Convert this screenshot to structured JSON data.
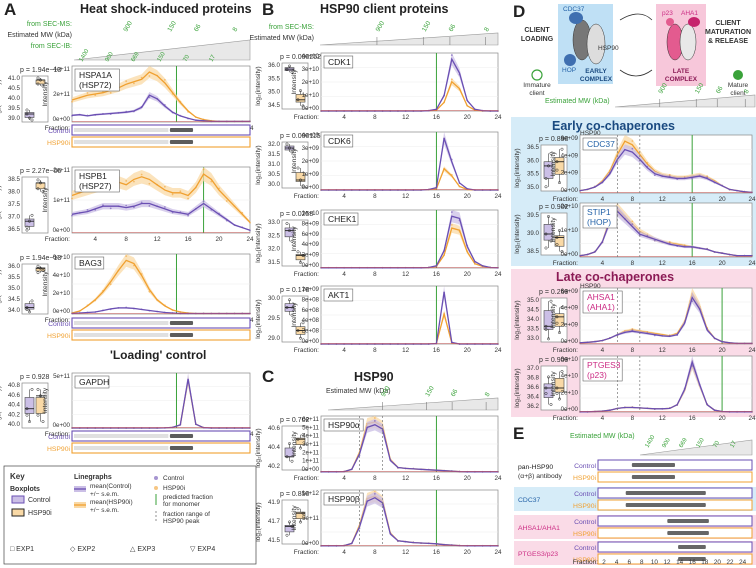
{
  "colors": {
    "control": "#6a4fb3",
    "control_fill": "#cbbfe6",
    "hsp90i": "#f0a030",
    "hsp90i_fill": "#f9d9a6",
    "red_line": "#d9534f",
    "green": "#3aa23a",
    "early_bg": "#d6ecf8",
    "late_bg": "#fadbe7",
    "ahsa1": "#cc2c84",
    "cdc37": "#2563a8"
  },
  "panel_letters": {
    "A": "A",
    "B": "B",
    "C": "C",
    "D": "D",
    "E": "E"
  },
  "panel_titles": {
    "A": "Heat shock-induced proteins",
    "B": "HSP90 client proteins",
    "C": "HSP90",
    "loading": "'Loading' control",
    "early": "Early co-chaperones",
    "late": "Late co-chaperones"
  },
  "mw_header": {
    "from_sec_ms": "from SEC-MS:",
    "estimated_mw": "Estimated MW (kDa)",
    "from_sec_ib": "from SEC-IB:",
    "mw_ticks": [
      "900",
      "150",
      "66",
      "8"
    ],
    "mw_ticks_e": [
      "1400",
      "900",
      "669",
      "150",
      "70",
      "17"
    ],
    "ib_ticks": [
      "1400",
      "900",
      "669",
      "150",
      "70",
      "17"
    ]
  },
  "axis_labels": {
    "intensity": "Intensity",
    "log2": "log₂(intensity)",
    "fraction": "Fraction:",
    "fraction_ticks": [
      "4",
      "8",
      "12",
      "16",
      "20",
      "24"
    ],
    "fraction_ticks_e": [
      "2",
      "4",
      "6",
      "8",
      "10",
      "12",
      "14",
      "16",
      "18",
      "20",
      "22",
      "24"
    ]
  },
  "blot_labels": {
    "control": "Control",
    "hsp90i": "HSP90i"
  },
  "charts": [
    {
      "id": "hspa1a",
      "name": "HSPA1A",
      "name2": "(HSP72)",
      "p": "p = 1.94e−13",
      "y_ticks": [
        "4e+11",
        "2e+11",
        "0e+00"
      ],
      "y_max": 460000000000.0,
      "box_ticks": [
        "41.0",
        "40.5",
        "40.0",
        "39.5",
        "39.0"
      ],
      "control": [
        0.55,
        0.6,
        0.5,
        0.6,
        0.65,
        0.7,
        0.75,
        0.8,
        0.9,
        1.2,
        2.2,
        1.9,
        1.3,
        0.8,
        0.5,
        0.3,
        0.15,
        0.1,
        0.05,
        0.05,
        0.05,
        0.05,
        0.05,
        0.05
      ],
      "hsp90i": [
        1.8,
        2.0,
        2.2,
        2.3,
        2.4,
        2.6,
        2.8,
        3.1,
        3.3,
        3.5,
        4.1,
        3.8,
        3.2,
        2.4,
        1.6,
        0.9,
        0.4,
        0.2,
        0.1,
        0.05,
        0.05,
        0.05,
        0.05,
        0.05
      ],
      "green": 14.5,
      "box_c": [
        39.2,
        39.0,
        38.9,
        39.4
      ],
      "box_h": [
        40.7,
        40.9,
        40.6,
        41.0
      ],
      "blot": true
    },
    {
      "id": "hspb1",
      "name": "HSPB1",
      "name2": "(HSP27)",
      "p": "p = 2.27e−06",
      "y_ticks": [
        "2e+11",
        "1e+11",
        "0e+00"
      ],
      "y_max": 260000000000.0,
      "box_ticks": [
        "38.5",
        "38.0",
        "37.5",
        "37.0",
        "36.5"
      ],
      "control": [
        0.7,
        0.75,
        0.8,
        0.9,
        1.0,
        1.0,
        1.0,
        0.95,
        1.0,
        1.1,
        1.1,
        1.0,
        0.9,
        0.8,
        0.75,
        0.7,
        0.9,
        1.1,
        0.9,
        0.7,
        0.5,
        0.3,
        0.2,
        0.1
      ],
      "hsp90i": [
        1.4,
        1.5,
        1.6,
        1.7,
        1.8,
        1.9,
        1.9,
        1.8,
        2.0,
        2.1,
        2.0,
        1.8,
        1.6,
        1.5,
        1.5,
        1.4,
        1.7,
        2.2,
        2.0,
        1.6,
        1.3,
        1.0,
        0.7,
        0.4
      ],
      "green": 18.0,
      "box_c": [
        36.7,
        36.9,
        37.1,
        36.6
      ],
      "box_h": [
        38.0,
        38.2,
        37.9,
        38.3
      ],
      "blot": false
    },
    {
      "id": "bag3",
      "name": "BAG3",
      "name2": "",
      "p": "p = 1.94e−13",
      "y_ticks": [
        "6e+10",
        "4e+10",
        "2e+10",
        "0e+00"
      ],
      "y_max": 70000000000.0,
      "box_ticks": [
        "36.0",
        "35.5",
        "35.0",
        "34.5",
        "34.0"
      ],
      "control": [
        0.05,
        0.1,
        0.15,
        0.2,
        0.35,
        0.5,
        0.6,
        0.6,
        0.55,
        0.45,
        0.35,
        0.25,
        0.15,
        0.1,
        0.05,
        0.05,
        0.05,
        0.05,
        0.05,
        0.05,
        0.05,
        0.05,
        0.05,
        0.05
      ],
      "hsp90i": [
        0.1,
        0.3,
        0.8,
        1.4,
        2.2,
        3.2,
        4.3,
        5.3,
        5.0,
        3.8,
        2.4,
        1.4,
        0.8,
        0.4,
        0.2,
        0.1,
        0.05,
        0.05,
        0.05,
        0.05,
        0.05,
        0.05,
        0.05,
        0.05
      ],
      "green": 14.5,
      "box_c": [
        34.2,
        34.0,
        34.5,
        34.1
      ],
      "box_h": [
        35.8,
        36.0,
        35.9,
        36.1
      ],
      "blot": true
    },
    {
      "id": "gapdh",
      "name": "GAPDH",
      "name2": "",
      "p": "p = 0.928",
      "y_ticks": [
        "5e+11",
        "0e+00"
      ],
      "y_max": 900000000000.0,
      "box_ticks": [
        "40.8",
        "40.6",
        "40.4",
        "40.2",
        "40.0"
      ],
      "control": [
        0,
        0,
        0,
        0,
        0,
        0,
        0,
        0,
        0,
        0,
        0,
        0,
        0.02,
        0.1,
        0.5,
        7.8,
        0.6,
        0.05,
        0,
        0,
        0,
        0,
        0,
        0
      ],
      "hsp90i": [
        0,
        0,
        0,
        0,
        0,
        0,
        0,
        0,
        0,
        0,
        0,
        0,
        0.02,
        0.1,
        0.5,
        7.6,
        0.6,
        0.05,
        0,
        0,
        0,
        0,
        0,
        0
      ],
      "green": 14.5,
      "box_c": [
        40.3,
        40.1,
        40.6,
        40.2
      ],
      "box_h": [
        40.2,
        40.5,
        40.1,
        40.6
      ],
      "blot": true
    },
    {
      "id": "cdk1",
      "name": "CDK1",
      "name2": "",
      "p": "p = 0.000252",
      "y_ticks": [
        "4e+10",
        "3e+10",
        "2e+10",
        "1e+10",
        "0e+00"
      ],
      "y_max": 42000000000.0,
      "box_ticks": [
        "36.0",
        "35.5",
        "35.0",
        "34.5"
      ],
      "control": [
        0,
        0,
        0,
        0,
        0,
        0,
        0,
        0,
        0,
        0,
        0,
        0,
        0,
        0,
        0.02,
        0.1,
        0.9,
        3.0,
        2.2,
        0.6,
        0.1,
        0.02,
        0,
        0
      ],
      "hsp90i": [
        0,
        0,
        0,
        0,
        0,
        0,
        0,
        0,
        0,
        0,
        0,
        0,
        0,
        0,
        0.02,
        0.05,
        0.5,
        1.7,
        1.3,
        0.3,
        0.05,
        0,
        0,
        0
      ],
      "green": 16.0,
      "box_c": [
        35.9,
        36.0,
        35.8
      ],
      "box_h": [
        34.9,
        35.2,
        34.7
      ],
      "blot": false
    },
    {
      "id": "cdk6",
      "name": "CDK6",
      "name2": "",
      "p": "p = 0.000115",
      "y_ticks": [
        "4e+09",
        "3e+09",
        "2e+09",
        "1e+09",
        "0e+00"
      ],
      "y_max": 4200000000.0,
      "box_ticks": [
        "32.0",
        "31.5",
        "31.0",
        "30.5",
        "30.0"
      ],
      "control": [
        0,
        0,
        0,
        0,
        0,
        0,
        0,
        0,
        0,
        0,
        0,
        0,
        0,
        0,
        0.02,
        0.1,
        2.2,
        1.2,
        0.3,
        0.05,
        0,
        0,
        0,
        0
      ],
      "hsp90i": [
        0,
        0,
        0,
        0,
        0,
        0,
        0,
        0,
        0,
        0,
        0,
        0,
        0,
        0,
        0.02,
        0.05,
        0.9,
        0.6,
        0.15,
        0.02,
        0,
        0,
        0,
        0
      ],
      "green": 16.0,
      "box_c": [
        32.1,
        31.9,
        31.7
      ],
      "box_h": [
        30.9,
        30.3,
        30.0
      ],
      "blot": false
    },
    {
      "id": "chek1",
      "name": "CHEK1",
      "name2": "",
      "p": "p = 0.0258",
      "y_ticks": [
        "1e+10",
        "8e+09",
        "6e+09",
        "4e+09",
        "2e+09",
        "0e+00"
      ],
      "y_max": 11000000000.0,
      "box_ticks": [
        "33.0",
        "32.5",
        "32.0",
        "31.5"
      ],
      "control": [
        0.02,
        0.02,
        0.02,
        0.02,
        0.02,
        0.02,
        0.02,
        0.02,
        0.02,
        0.02,
        0.02,
        0.02,
        0.02,
        0.02,
        0.05,
        0.2,
        1.6,
        4.8,
        4.6,
        2.0,
        0.6,
        0.2,
        0.05,
        0.02
      ],
      "hsp90i": [
        0.02,
        0.02,
        0.02,
        0.02,
        0.02,
        0.02,
        0.02,
        0.02,
        0.02,
        0.02,
        0.02,
        0.02,
        0.02,
        0.02,
        0.05,
        0.15,
        1.2,
        3.7,
        3.5,
        1.5,
        0.4,
        0.15,
        0.05,
        0.02
      ],
      "green": 16.0,
      "box_c": [
        32.7,
        32.5,
        32.2
      ],
      "box_h": [
        31.9,
        31.6,
        31.8
      ],
      "blot": false
    },
    {
      "id": "akt1",
      "name": "AKT1",
      "name2": "",
      "p": "p = 0.178",
      "y_ticks": [
        "1e+09",
        "8e+08",
        "6e+08",
        "4e+08",
        "2e+08",
        "0e+00"
      ],
      "y_max": 1100000000.0,
      "box_ticks": [
        "30.0",
        "29.5",
        "29.0"
      ],
      "control": [
        0,
        0,
        0,
        0,
        0,
        0,
        0,
        0,
        0,
        0,
        0,
        0,
        0,
        0,
        0,
        0.1,
        9.5,
        0.3,
        0,
        0,
        0,
        0,
        0,
        0
      ],
      "hsp90i": [
        0,
        0,
        0,
        0,
        0,
        0,
        0,
        0,
        0,
        0,
        0,
        0,
        0,
        0,
        0,
        0.1,
        5.5,
        0.2,
        0,
        0,
        0,
        0,
        0,
        0
      ],
      "green": 16.0,
      "box_c": [
        29.9,
        30.1,
        29.7
      ],
      "box_h": [
        29.3,
        29.1,
        29.5
      ],
      "blot": false
    },
    {
      "id": "hsp90a",
      "name": "HSP90α",
      "name2": "",
      "p": "p = 0.702",
      "y_ticks": [
        "6e+11",
        "5e+11",
        "4e+11",
        "3e+11",
        "2e+11",
        "1e+11",
        "0e+00"
      ],
      "y_max": 650000000000.0,
      "box_ticks": [
        "40.6",
        "40.4",
        "40.2"
      ],
      "control": [
        0.02,
        0.02,
        0.02,
        0.05,
        0.3,
        2.0,
        5.0,
        5.3,
        4.8,
        1.3,
        0.5,
        0.4,
        0.35,
        0.3,
        0.25,
        0.2,
        0.15,
        0.1,
        0.05,
        0.02,
        0.02,
        0.02,
        0.02,
        0.02
      ],
      "hsp90i": [
        0.02,
        0.02,
        0.02,
        0.05,
        0.3,
        2.2,
        5.4,
        5.6,
        5.1,
        1.4,
        0.5,
        0.4,
        0.35,
        0.3,
        0.25,
        0.2,
        0.15,
        0.1,
        0.05,
        0.02,
        0.02,
        0.02,
        0.02,
        0.02
      ],
      "green": 16.0,
      "box_c": [
        40.2,
        40.35,
        40.15
      ],
      "box_h": [
        40.4,
        40.3,
        40.45
      ],
      "blot": false
    },
    {
      "id": "hsp90b",
      "name": "HSP90β",
      "name2": "",
      "p": "p = 0.850",
      "y_ticks": [
        "1e+12",
        "5e+11",
        "0e+00"
      ],
      "y_max": 1300000000000.0,
      "box_ticks": [
        "41.9",
        "41.7",
        "41.5"
      ],
      "control": [
        0.02,
        0.02,
        0.02,
        0.05,
        0.3,
        2.2,
        5.2,
        5.6,
        5.0,
        1.4,
        0.6,
        0.5,
        0.4,
        0.35,
        0.3,
        0.25,
        0.15,
        0.1,
        0.05,
        0.02,
        0.02,
        0.02,
        0.02,
        0.02
      ],
      "hsp90i": [
        0.02,
        0.02,
        0.02,
        0.05,
        0.3,
        2.4,
        5.5,
        5.8,
        5.2,
        1.5,
        0.6,
        0.5,
        0.4,
        0.35,
        0.3,
        0.25,
        0.15,
        0.1,
        0.05,
        0.02,
        0.02,
        0.02,
        0.02,
        0.02
      ],
      "green": 16.0,
      "box_c": [
        41.5,
        41.65,
        41.6
      ],
      "box_h": [
        41.8,
        41.65,
        41.75
      ],
      "blot": false
    },
    {
      "id": "cdc37",
      "name": "CDC37",
      "name2": "",
      "p": "p = 0.898",
      "y_ticks": [
        "6e+09",
        "4e+09",
        "2e+09",
        "0e+00"
      ],
      "y_max": 7000000000.0,
      "box_ticks": [
        "36.5",
        "36.0",
        "35.5",
        "35.0"
      ],
      "control": [
        0.2,
        0.3,
        0.5,
        0.9,
        1.6,
        2.8,
        3.6,
        3.4,
        2.8,
        2.1,
        1.6,
        1.4,
        1.3,
        1.2,
        1.2,
        1.3,
        1.4,
        1.2,
        0.9,
        0.6,
        0.3,
        0.2,
        0.1,
        0.05
      ],
      "hsp90i": [
        0.2,
        0.3,
        0.5,
        1.0,
        1.8,
        3.2,
        4.3,
        4.0,
        3.2,
        2.4,
        1.8,
        1.5,
        1.4,
        1.3,
        1.3,
        1.4,
        1.5,
        1.3,
        1.0,
        0.6,
        0.3,
        0.2,
        0.1,
        0.05
      ],
      "green": 16.0,
      "box_c": [
        35.3,
        35.8,
        36.1,
        35.5
      ],
      "box_h": [
        35.9,
        35.4,
        36.2,
        35.7
      ],
      "blot": false
    },
    {
      "id": "stip1",
      "name": "STIP1",
      "name2": "(HOP)",
      "p": "p = 0.902",
      "y_ticks": [
        "2e+10",
        "1e+10",
        "0e+00"
      ],
      "y_max": 24000000000.0,
      "box_ticks": [
        "39.5",
        "39.0",
        "38.5"
      ],
      "control": [
        0.05,
        0.1,
        0.2,
        0.6,
        1.4,
        1.8,
        1.5,
        1.2,
        0.9,
        0.8,
        0.7,
        0.6,
        0.5,
        0.45,
        0.4,
        0.4,
        0.35,
        0.3,
        0.2,
        0.15,
        0.1,
        0.05,
        0.05,
        0.05
      ],
      "hsp90i": [
        0.05,
        0.1,
        0.2,
        0.6,
        1.5,
        1.9,
        1.6,
        1.3,
        1.0,
        0.85,
        0.7,
        0.6,
        0.55,
        0.5,
        0.45,
        0.4,
        0.35,
        0.3,
        0.2,
        0.15,
        0.1,
        0.05,
        0.05,
        0.05
      ],
      "green": 16.0,
      "box_c": [
        38.9,
        39.4,
        38.7,
        38.5
      ],
      "box_h": [
        38.6,
        39.0,
        38.4,
        38.8
      ],
      "blot": false
    },
    {
      "id": "ahsa1",
      "name": "AHSA1",
      "name2": "(AHA1)",
      "p": "p = 0.269",
      "y_ticks": [
        "6e+09",
        "4e+09",
        "2e+09",
        "0e+00"
      ],
      "y_max": 7000000000.0,
      "box_ticks": [
        "35.0",
        "34.5",
        "34.0",
        "33.5",
        "33.0"
      ],
      "control": [
        0.1,
        0.15,
        0.2,
        0.3,
        0.5,
        0.8,
        1.0,
        1.1,
        1.0,
        0.9,
        0.8,
        0.7,
        0.65,
        0.8,
        1.8,
        4.0,
        3.0,
        1.2,
        0.5,
        0.2,
        0.1,
        0.05,
        0.05,
        0.05
      ],
      "hsp90i": [
        0.1,
        0.15,
        0.2,
        0.3,
        0.5,
        0.8,
        1.1,
        1.2,
        1.1,
        1.0,
        0.9,
        0.8,
        0.7,
        0.9,
        1.9,
        4.3,
        3.2,
        1.3,
        0.5,
        0.2,
        0.1,
        0.05,
        0.05,
        0.05
      ],
      "green": 20.0,
      "box_c": [
        34.0,
        33.6,
        34.8,
        33.9
      ],
      "box_h": [
        34.3,
        33.8,
        34.6,
        34.1
      ],
      "blot": false
    },
    {
      "id": "ptges3",
      "name": "PTGES3",
      "name2": "(p23)",
      "p": "p = 0.909",
      "y_ticks": [
        "6e+10",
        "4e+10",
        "2e+10",
        "0e+00"
      ],
      "y_max": 65000000000.0,
      "box_ticks": [
        "37.0",
        "36.8",
        "36.6",
        "36.4",
        "36.2"
      ],
      "control": [
        0.02,
        0.02,
        0.05,
        0.1,
        0.2,
        0.4,
        0.5,
        0.5,
        0.45,
        0.4,
        0.35,
        0.35,
        0.4,
        0.8,
        2.5,
        5.5,
        3.0,
        0.8,
        0.2,
        0.05,
        0.02,
        0.02,
        0.02,
        0.02
      ],
      "hsp90i": [
        0.02,
        0.02,
        0.05,
        0.1,
        0.2,
        0.4,
        0.5,
        0.5,
        0.45,
        0.4,
        0.35,
        0.35,
        0.4,
        0.8,
        2.4,
        5.3,
        2.9,
        0.8,
        0.2,
        0.05,
        0.02,
        0.02,
        0.02,
        0.02
      ],
      "green": 20.0,
      "box_c": [
        36.5,
        36.8,
        36.3,
        36.6
      ],
      "box_h": [
        36.6,
        36.4,
        36.9,
        36.5
      ],
      "blot": false
    }
  ],
  "legend": {
    "key": "Key",
    "boxplots": "Boxplots",
    "linegraphs": "Linegraphs",
    "control": "Control",
    "hsp90i": "HSP90i",
    "mean_control": "mean(Control)",
    "mean_hsp90i": "mean(HSP90i)",
    "sem": "+/− s.e.m.",
    "predicted": "predicted fraction",
    "for_monomer": "for monomer",
    "fraction_range": "fraction range of",
    "hsp90_peak": "HSP90 peak",
    "exps": [
      "EXP1",
      "EXP2",
      "EXP3",
      "EXP4"
    ]
  },
  "diagram": {
    "client_loading": [
      "CLIENT",
      "LOADING"
    ],
    "client_maturation": [
      "CLIENT",
      "MATURATION",
      "& RELEASE"
    ],
    "immature": [
      "Immature",
      "client"
    ],
    "mature": [
      "Mature",
      "client"
    ],
    "cdc37": "CDC37",
    "hsp90": "HSP90",
    "hop": "HOP",
    "early_complex": [
      "EARLY",
      "COMPLEX"
    ],
    "p23": "p23",
    "aha1": "AHA1",
    "late_complex": [
      "LATE",
      "COMPLEX"
    ]
  },
  "panel_e": {
    "rows": [
      {
        "label": "pan-HSP90",
        "label2": "(α+β) antibody",
        "cls": "pan"
      },
      {
        "label": "CDC37",
        "label2": "",
        "cls": "early"
      },
      {
        "label": "AHSA1/AHA1",
        "label2": "",
        "cls": "late"
      },
      {
        "label": "PTGES3/p23",
        "label2": "",
        "cls": "late"
      }
    ]
  }
}
